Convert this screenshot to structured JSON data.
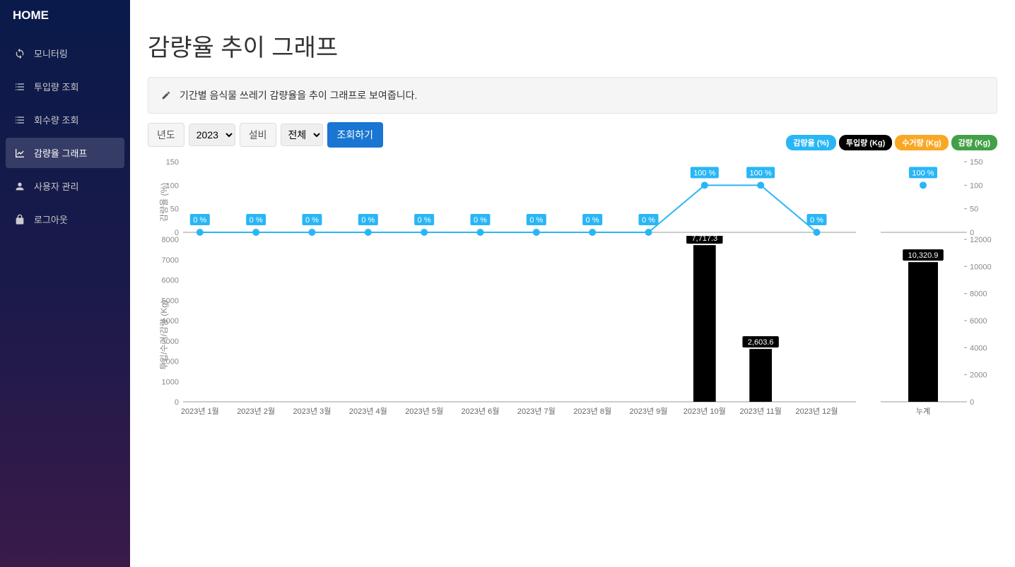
{
  "sidebar": {
    "home": "HOME",
    "items": [
      {
        "label": "모니터링",
        "icon": "refresh"
      },
      {
        "label": "투입량 조회",
        "icon": "list"
      },
      {
        "label": "회수량 조회",
        "icon": "list"
      },
      {
        "label": "감량율 그래프",
        "icon": "chart",
        "active": true
      },
      {
        "label": "사용자 관리",
        "icon": "user"
      },
      {
        "label": "로그아웃",
        "icon": "lock"
      }
    ]
  },
  "page": {
    "title": "감량율 추이 그래프",
    "description": "기간별 음식물 쓰레기 감량율을 추이 그래프로 보여줍니다."
  },
  "controls": {
    "year_label": "년도",
    "year_value": "2023",
    "facility_label": "설비",
    "facility_value": "전체",
    "search_label": "조회하기"
  },
  "legend": [
    {
      "label": "감량율 (%)",
      "color": "#29b6f6"
    },
    {
      "label": "투입량 (Kg)",
      "color": "#000000"
    },
    {
      "label": "수거량 (Kg)",
      "color": "#f9a825"
    },
    {
      "label": "감량 (Kg)",
      "color": "#43a047"
    }
  ],
  "chart": {
    "line": {
      "left_axis_title": "감량율 (%)",
      "left_axis": {
        "min": 0,
        "max": 150,
        "ticks": [
          0,
          50,
          100,
          150
        ]
      },
      "right_axis": {
        "min": 0,
        "max": 150,
        "ticks": [
          0,
          50,
          100,
          150
        ]
      },
      "color": "#29b6f6",
      "point_radius": 5,
      "line_width": 2,
      "categories": [
        "2023년 1월",
        "2023년 2월",
        "2023년 3월",
        "2023년 4월",
        "2023년 5월",
        "2023년 6월",
        "2023년 7월",
        "2023년 8월",
        "2023년 9월",
        "2023년 10월",
        "2023년 11월",
        "2023년 12월"
      ],
      "values": [
        0,
        0,
        0,
        0,
        0,
        0,
        0,
        0,
        0,
        100,
        100,
        0
      ],
      "labels": [
        "0 %",
        "0 %",
        "0 %",
        "0 %",
        "0 %",
        "0 %",
        "0 %",
        "0 %",
        "0 %",
        "100 %",
        "100 %",
        "0 %"
      ]
    },
    "bar": {
      "left_axis_title": "투입/수거/감량 (Kg)",
      "left_axis": {
        "min": 0,
        "max": 8000,
        "ticks": [
          0,
          1000,
          2000,
          3000,
          4000,
          5000,
          6000,
          7000,
          8000
        ]
      },
      "right_axis": {
        "min": 0,
        "max": 12000,
        "ticks": [
          0,
          2000,
          4000,
          6000,
          8000,
          10000,
          12000
        ]
      },
      "color": "#000000",
      "bar_width_ratio": 0.4,
      "values": [
        0,
        0,
        0,
        0,
        0,
        0,
        0,
        0,
        0,
        7717.3,
        2603.6,
        0
      ],
      "labels": [
        "",
        "",
        "",
        "",
        "",
        "",
        "",
        "",
        "",
        "7,717.3",
        "2,603.6",
        ""
      ]
    },
    "total": {
      "label": "누계",
      "line_value": 100,
      "line_label": "100 %",
      "bar_value": 10320.9,
      "bar_label": "10,320.9"
    },
    "grid_color": "#dddddd",
    "axis_color": "#999999"
  }
}
